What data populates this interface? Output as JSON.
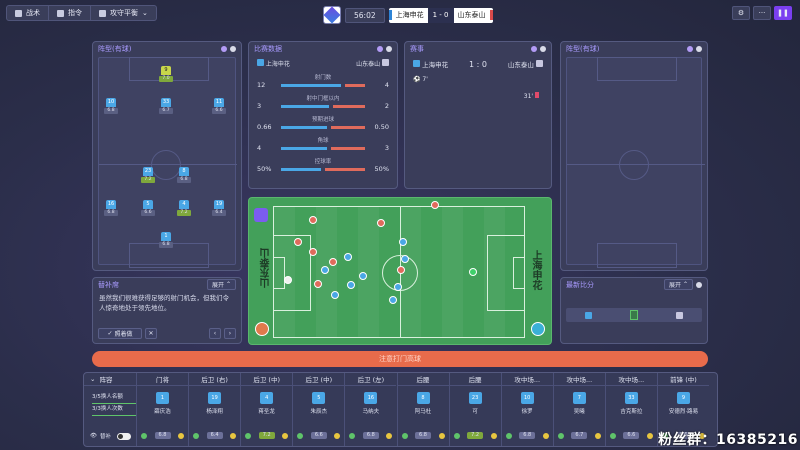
{
  "topbar": {
    "tactics_label": "战术",
    "instructions_label": "指令",
    "mentality_label": "攻守平衡",
    "time": "56:02",
    "home_name": "上海申花",
    "score": "1 - 0",
    "away_name": "山东泰山",
    "right_buttons": [
      "gear-icon",
      "more-icon",
      "pause-icon"
    ]
  },
  "formation_left": {
    "title": "阵型(有球)"
  },
  "formation_right": {
    "title": "阵型(有球)"
  },
  "stats": {
    "title": "比赛数据",
    "home": "上海申花",
    "away": "山东泰山",
    "rows": [
      {
        "label": "射门数",
        "home": "12",
        "away": "4",
        "hp": 75
      },
      {
        "label": "射中门框以内",
        "home": "3",
        "away": "2",
        "hp": 60
      },
      {
        "label": "预期进球",
        "home": "0.66",
        "away": "0.50",
        "hp": 57
      },
      {
        "label": "角球",
        "home": "4",
        "away": "3",
        "hp": 57
      },
      {
        "label": "控球率",
        "home": "50%",
        "away": "50%",
        "hp": 50
      }
    ]
  },
  "events": {
    "title": "赛事",
    "home": "上海申花",
    "score": "1 : 0",
    "away": "山东泰山",
    "items": [
      {
        "min": "7'",
        "side": "home"
      },
      {
        "min": "31'",
        "side": "away"
      }
    ]
  },
  "assistant": {
    "title": "替补席",
    "expand_label": "展开",
    "text": "虽然我们很难获得足够的射门机会，但我们令人惊奇地处于领先地位。",
    "action_label": "照着做"
  },
  "pitch": {
    "home_name": "上海申花",
    "away_name": "山东泰山"
  },
  "latest": {
    "title": "最新比分",
    "expand_label": "展开"
  },
  "action_bar": {
    "label": "注意打门高球"
  },
  "lineup": {
    "title": "阵容",
    "line1": "3/5换人名额",
    "line2": "3/3换人次数",
    "toggle_label": "替补",
    "players": [
      {
        "pos": "门将",
        "num": "1",
        "name": "薛庆浩",
        "rating": "6.8",
        "g": false
      },
      {
        "pos": "后卫 (右)",
        "num": "19",
        "name": "杨泽翔",
        "rating": "6.4",
        "g": false
      },
      {
        "pos": "后卫 (中)",
        "num": "4",
        "name": "蒋圣龙",
        "rating": "7.2",
        "g": true
      },
      {
        "pos": "后卫 (中)",
        "num": "5",
        "name": "朱辰杰",
        "rating": "6.6",
        "g": false
      },
      {
        "pos": "后卫 (左)",
        "num": "16",
        "name": "马纳夫",
        "rating": "6.8",
        "g": false
      },
      {
        "pos": "后腰",
        "num": "8",
        "name": "阿马杜",
        "rating": "6.8",
        "g": false
      },
      {
        "pos": "后腰",
        "num": "23",
        "name": "可",
        "rating": "7.2",
        "g": true
      },
      {
        "pos": "攻中场...",
        "num": "10",
        "name": "徐罗",
        "rating": "6.8",
        "g": false
      },
      {
        "pos": "攻中场...",
        "num": "7",
        "name": "吴曦",
        "rating": "6.7",
        "g": false
      },
      {
        "pos": "攻中场...",
        "num": "33",
        "name": "吉克斯拉",
        "rating": "6.6",
        "g": false
      },
      {
        "pos": "前锋 (中)",
        "num": "9",
        "name": "安德烈·路易",
        "rating": "6.6",
        "g": false
      }
    ]
  },
  "watermark": "粉丝群：16385216"
}
